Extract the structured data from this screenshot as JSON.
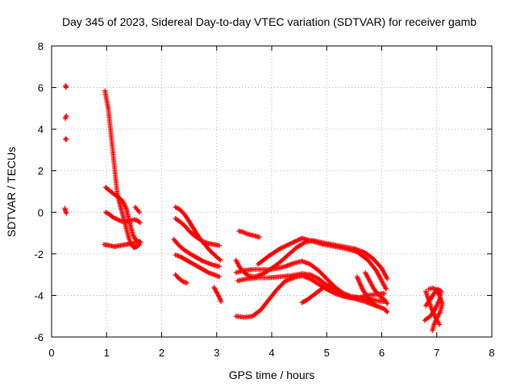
{
  "chart_data": {
    "type": "scatter",
    "title": "Day 345 of 2023, Sidereal Day-to-day VTEC variation (SDTVAR) for receiver gamb",
    "xlabel": "GPS time / hours",
    "ylabel": "SDTVAR / TECUs",
    "xlim": [
      0,
      8
    ],
    "ylim": [
      -6,
      8
    ],
    "xticks": [
      "0",
      "1",
      "2",
      "3",
      "4",
      "5",
      "6",
      "7",
      "8"
    ],
    "yticks": [
      "-6",
      "-4",
      "-2",
      "0",
      "2",
      "4",
      "6",
      "8"
    ],
    "grid": true,
    "marker": "+",
    "color": "#ff0000",
    "series": [
      {
        "tracks": [
          [
            [
              0.25,
              6.1
            ],
            [
              0.26,
              6.0
            ],
            [
              0.27,
              6.05
            ]
          ],
          [
            [
              0.25,
              4.5
            ],
            [
              0.26,
              4.6
            ],
            [
              0.27,
              4.65
            ]
          ],
          [
            [
              0.25,
              3.5
            ],
            [
              0.26,
              3.55
            ],
            [
              0.27,
              3.5
            ]
          ],
          [
            [
              0.24,
              0.2
            ],
            [
              0.25,
              0.1
            ],
            [
              0.26,
              0.0
            ],
            [
              0.27,
              -0.05
            ]
          ],
          [
            [
              0.97,
              5.85
            ],
            [
              1.0,
              5.4
            ],
            [
              1.03,
              5.0
            ],
            [
              1.05,
              4.5
            ],
            [
              1.07,
              4.0
            ],
            [
              1.09,
              3.5
            ],
            [
              1.11,
              3.0
            ],
            [
              1.13,
              2.5
            ],
            [
              1.15,
              2.0
            ],
            [
              1.17,
              1.5
            ],
            [
              1.19,
              1.0
            ],
            [
              1.22,
              0.6
            ],
            [
              1.25,
              0.3
            ],
            [
              1.28,
              0.0
            ],
            [
              1.31,
              -0.3
            ],
            [
              1.34,
              -0.6
            ],
            [
              1.37,
              -0.9
            ],
            [
              1.4,
              -1.2
            ],
            [
              1.43,
              -1.45
            ],
            [
              1.46,
              -1.6
            ],
            [
              1.5,
              -1.7
            ],
            [
              1.55,
              -1.65
            ],
            [
              1.6,
              -1.55
            ]
          ],
          [
            [
              0.98,
              1.2
            ],
            [
              1.05,
              1.05
            ],
            [
              1.12,
              0.9
            ],
            [
              1.2,
              0.75
            ],
            [
              1.27,
              0.6
            ],
            [
              1.32,
              0.4
            ],
            [
              1.36,
              0.15
            ],
            [
              1.39,
              -0.2
            ],
            [
              1.42,
              -0.5
            ],
            [
              1.45,
              -0.8
            ],
            [
              1.48,
              -1.1
            ],
            [
              1.52,
              -1.3
            ],
            [
              1.57,
              -1.4
            ],
            [
              1.62,
              -1.45
            ]
          ],
          [
            [
              0.98,
              0.0
            ],
            [
              1.05,
              -0.1
            ],
            [
              1.12,
              -0.25
            ],
            [
              1.2,
              -0.35
            ],
            [
              1.28,
              -0.45
            ],
            [
              1.36,
              -0.45
            ],
            [
              1.43,
              -0.4
            ],
            [
              1.5,
              -0.35
            ],
            [
              1.56,
              -0.4
            ],
            [
              1.61,
              -0.5
            ]
          ],
          [
            [
              0.95,
              -1.55
            ],
            [
              1.05,
              -1.6
            ],
            [
              1.15,
              -1.65
            ],
            [
              1.25,
              -1.6
            ],
            [
              1.35,
              -1.55
            ],
            [
              1.45,
              -1.5
            ],
            [
              1.55,
              -1.45
            ],
            [
              1.6,
              -1.4
            ]
          ],
          [
            [
              1.52,
              0.25
            ],
            [
              1.55,
              0.15
            ],
            [
              1.58,
              0.05
            ],
            [
              1.6,
              0.0
            ]
          ],
          [
            [
              2.25,
              0.25
            ],
            [
              2.32,
              0.15
            ],
            [
              2.4,
              -0.05
            ],
            [
              2.48,
              -0.35
            ],
            [
              2.56,
              -0.7
            ],
            [
              2.64,
              -1.05
            ],
            [
              2.72,
              -1.35
            ],
            [
              2.8,
              -1.6
            ],
            [
              2.88,
              -1.85
            ],
            [
              2.96,
              -2.05
            ],
            [
              3.02,
              -2.2
            ],
            [
              3.07,
              -2.3
            ]
          ],
          [
            [
              2.25,
              -0.3
            ],
            [
              2.33,
              -0.45
            ],
            [
              2.42,
              -0.65
            ],
            [
              2.5,
              -0.9
            ],
            [
              2.58,
              -1.1
            ],
            [
              2.66,
              -1.25
            ],
            [
              2.75,
              -1.4
            ],
            [
              2.85,
              -1.5
            ],
            [
              2.95,
              -1.55
            ],
            [
              3.05,
              -1.6
            ]
          ],
          [
            [
              2.22,
              -1.3
            ],
            [
              2.3,
              -1.55
            ],
            [
              2.38,
              -1.75
            ],
            [
              2.46,
              -1.9
            ],
            [
              2.55,
              -2.05
            ],
            [
              2.65,
              -2.2
            ],
            [
              2.75,
              -2.35
            ],
            [
              2.85,
              -2.45
            ],
            [
              2.95,
              -2.55
            ],
            [
              3.05,
              -2.6
            ]
          ],
          [
            [
              2.25,
              -2.05
            ],
            [
              2.35,
              -2.15
            ],
            [
              2.45,
              -2.3
            ],
            [
              2.55,
              -2.45
            ],
            [
              2.65,
              -2.6
            ],
            [
              2.75,
              -2.75
            ],
            [
              2.85,
              -2.9
            ],
            [
              2.95,
              -3.0
            ],
            [
              3.05,
              -3.1
            ]
          ],
          [
            [
              2.25,
              -3.0
            ],
            [
              2.32,
              -3.2
            ],
            [
              2.4,
              -3.35
            ],
            [
              2.46,
              -3.4
            ]
          ],
          [
            [
              2.95,
              -3.6
            ],
            [
              3.0,
              -3.85
            ],
            [
              3.05,
              -4.1
            ],
            [
              3.08,
              -4.3
            ]
          ],
          [
            [
              3.4,
              -0.9
            ],
            [
              3.48,
              -0.95
            ],
            [
              3.56,
              -1.05
            ],
            [
              3.64,
              -1.1
            ],
            [
              3.72,
              -1.15
            ],
            [
              3.78,
              -1.2
            ]
          ],
          [
            [
              3.35,
              -2.3
            ],
            [
              3.42,
              -2.65
            ],
            [
              3.5,
              -2.9
            ],
            [
              3.58,
              -3.05
            ],
            [
              3.7,
              -3.1
            ],
            [
              3.85,
              -2.95
            ],
            [
              4.0,
              -2.7
            ],
            [
              4.15,
              -2.4
            ],
            [
              4.3,
              -2.05
            ],
            [
              4.45,
              -1.7
            ],
            [
              4.6,
              -1.45
            ],
            [
              4.75,
              -1.35
            ],
            [
              4.9,
              -1.45
            ],
            [
              5.1,
              -1.55
            ],
            [
              5.3,
              -1.65
            ],
            [
              5.5,
              -1.75
            ],
            [
              5.7,
              -1.95
            ],
            [
              5.85,
              -2.25
            ],
            [
              6.0,
              -2.7
            ],
            [
              6.1,
              -3.2
            ]
          ],
          [
            [
              3.35,
              -2.9
            ],
            [
              3.5,
              -2.8
            ],
            [
              3.65,
              -2.75
            ],
            [
              3.8,
              -2.75
            ],
            [
              3.95,
              -2.75
            ],
            [
              4.1,
              -2.7
            ],
            [
              4.25,
              -2.6
            ],
            [
              4.4,
              -2.45
            ],
            [
              4.55,
              -2.35
            ],
            [
              4.7,
              -2.5
            ],
            [
              4.85,
              -2.8
            ],
            [
              5.0,
              -3.2
            ],
            [
              5.15,
              -3.6
            ],
            [
              5.3,
              -3.9
            ],
            [
              5.45,
              -4.05
            ],
            [
              5.6,
              -4.1
            ],
            [
              5.75,
              -4.15
            ],
            [
              5.9,
              -4.25
            ],
            [
              6.05,
              -4.3
            ]
          ],
          [
            [
              3.38,
              -3.3
            ],
            [
              3.55,
              -3.2
            ],
            [
              3.75,
              -3.15
            ],
            [
              3.95,
              -3.15
            ],
            [
              4.15,
              -3.1
            ],
            [
              4.35,
              -3.05
            ],
            [
              4.55,
              -2.95
            ],
            [
              4.7,
              -3.0
            ],
            [
              4.85,
              -3.2
            ],
            [
              5.0,
              -3.5
            ],
            [
              5.15,
              -3.8
            ],
            [
              5.3,
              -4.0
            ],
            [
              5.45,
              -4.1
            ],
            [
              5.6,
              -4.1
            ],
            [
              5.75,
              -4.0
            ],
            [
              5.9,
              -3.95
            ],
            [
              6.05,
              -3.9
            ]
          ],
          [
            [
              3.75,
              -2.5
            ],
            [
              3.95,
              -2.1
            ],
            [
              4.15,
              -1.75
            ],
            [
              4.35,
              -1.5
            ],
            [
              4.55,
              -1.25
            ],
            [
              4.75,
              -1.4
            ],
            [
              4.95,
              -1.55
            ],
            [
              5.15,
              -1.65
            ],
            [
              5.35,
              -1.75
            ],
            [
              5.55,
              -1.9
            ],
            [
              5.75,
              -2.3
            ],
            [
              5.9,
              -2.8
            ],
            [
              6.0,
              -3.3
            ],
            [
              6.08,
              -3.7
            ]
          ],
          [
            [
              3.35,
              -5.0
            ],
            [
              3.5,
              -5.05
            ],
            [
              3.65,
              -5.0
            ],
            [
              3.8,
              -4.7
            ],
            [
              3.95,
              -4.2
            ],
            [
              4.1,
              -3.7
            ],
            [
              4.25,
              -3.3
            ],
            [
              4.4,
              -3.15
            ],
            [
              4.55,
              -3.05
            ],
            [
              4.7,
              -3.2
            ],
            [
              4.85,
              -3.45
            ],
            [
              5.0,
              -3.7
            ],
            [
              5.15,
              -3.9
            ],
            [
              5.3,
              -4.05
            ],
            [
              5.5,
              -4.15
            ],
            [
              5.7,
              -4.3
            ],
            [
              5.9,
              -4.5
            ],
            [
              6.05,
              -4.65
            ],
            [
              6.1,
              -4.8
            ]
          ],
          [
            [
              4.55,
              -4.35
            ],
            [
              4.65,
              -4.2
            ],
            [
              4.75,
              -4.0
            ],
            [
              4.85,
              -3.8
            ],
            [
              4.95,
              -3.6
            ],
            [
              5.05,
              -3.5
            ]
          ],
          [
            [
              5.7,
              -2.9
            ],
            [
              5.78,
              -3.3
            ],
            [
              5.86,
              -3.7
            ],
            [
              5.95,
              -4.0
            ],
            [
              6.05,
              -4.2
            ],
            [
              6.1,
              -4.4
            ]
          ],
          [
            [
              5.55,
              -3.1
            ],
            [
              5.6,
              -3.4
            ],
            [
              5.65,
              -3.7
            ],
            [
              5.72,
              -4.0
            ],
            [
              5.8,
              -4.3
            ],
            [
              5.9,
              -4.5
            ]
          ],
          [
            [
              6.8,
              -3.8
            ],
            [
              6.85,
              -4.2
            ],
            [
              6.9,
              -4.6
            ],
            [
              6.95,
              -4.9
            ],
            [
              7.0,
              -5.2
            ],
            [
              7.05,
              -5.4
            ]
          ],
          [
            [
              6.8,
              -4.5
            ],
            [
              6.88,
              -4.2
            ],
            [
              6.95,
              -3.9
            ],
            [
              7.02,
              -3.7
            ],
            [
              7.08,
              -3.8
            ],
            [
              7.05,
              -4.2
            ],
            [
              6.98,
              -4.6
            ],
            [
              6.9,
              -4.95
            ],
            [
              6.83,
              -5.1
            ],
            [
              6.78,
              -5.2
            ]
          ],
          [
            [
              6.85,
              -3.7
            ],
            [
              6.92,
              -3.65
            ],
            [
              6.98,
              -3.7
            ],
            [
              7.05,
              -4.0
            ],
            [
              7.1,
              -4.4
            ],
            [
              7.06,
              -4.8
            ],
            [
              7.0,
              -5.1
            ],
            [
              6.95,
              -5.4
            ],
            [
              6.92,
              -5.7
            ]
          ]
        ]
      }
    ]
  }
}
